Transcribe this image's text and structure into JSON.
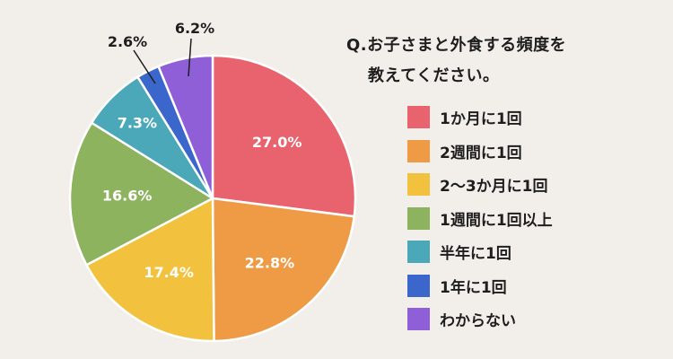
{
  "chart_data": {
    "type": "pie",
    "title_lines": [
      "Q.お子さまと外食する頻度を",
      "教えてください。"
    ],
    "categories": [
      "1か月に1回",
      "2週間に1回",
      "2〜3か月に1回",
      "1週間に1回以上",
      "半年に1回",
      "1年に1回",
      "わからない"
    ],
    "values": [
      27.0,
      22.8,
      17.4,
      16.6,
      7.3,
      2.6,
      6.2
    ],
    "data_labels": [
      "27.0%",
      "22.8%",
      "17.4%",
      "16.6%",
      "7.3%",
      "2.6%",
      "6.2%"
    ],
    "colors": [
      "#e8636e",
      "#ef9a44",
      "#f2c13e",
      "#8db35f",
      "#4aa8b8",
      "#3b66cc",
      "#8e5fd6"
    ],
    "start": "top",
    "direction": "clockwise",
    "legend_position": "right"
  }
}
